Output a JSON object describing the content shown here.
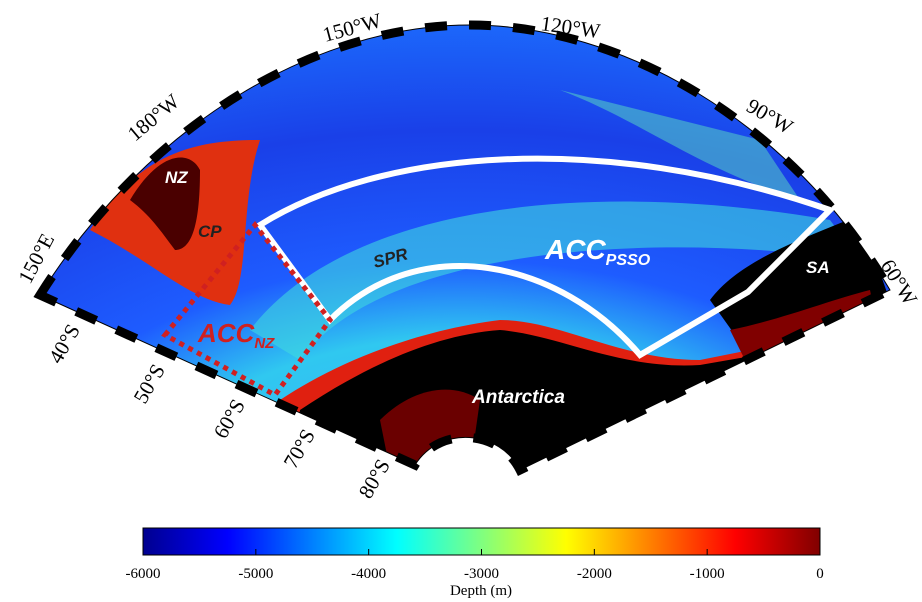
{
  "map": {
    "longitude_labels": [
      "150°E",
      "180°W",
      "150°W",
      "120°W",
      "90°W",
      "60°W"
    ],
    "latitude_labels": [
      "40°S",
      "50°S",
      "60°S",
      "70°S",
      "80°S"
    ],
    "regions": {
      "nz": "NZ",
      "cp": "CP",
      "spr": "SPR",
      "sa": "SA",
      "antarctica": "Antarctica",
      "acc_psso": {
        "main": "ACC",
        "sub": "PSSO"
      },
      "acc_nz": {
        "main": "ACC",
        "sub": "NZ"
      }
    }
  },
  "colorbar": {
    "label": "Depth (m)",
    "lim": [
      -6000,
      0
    ],
    "ticks": [
      -6000,
      -5000,
      -4000,
      -3000,
      -2000,
      -1000,
      0
    ]
  }
}
